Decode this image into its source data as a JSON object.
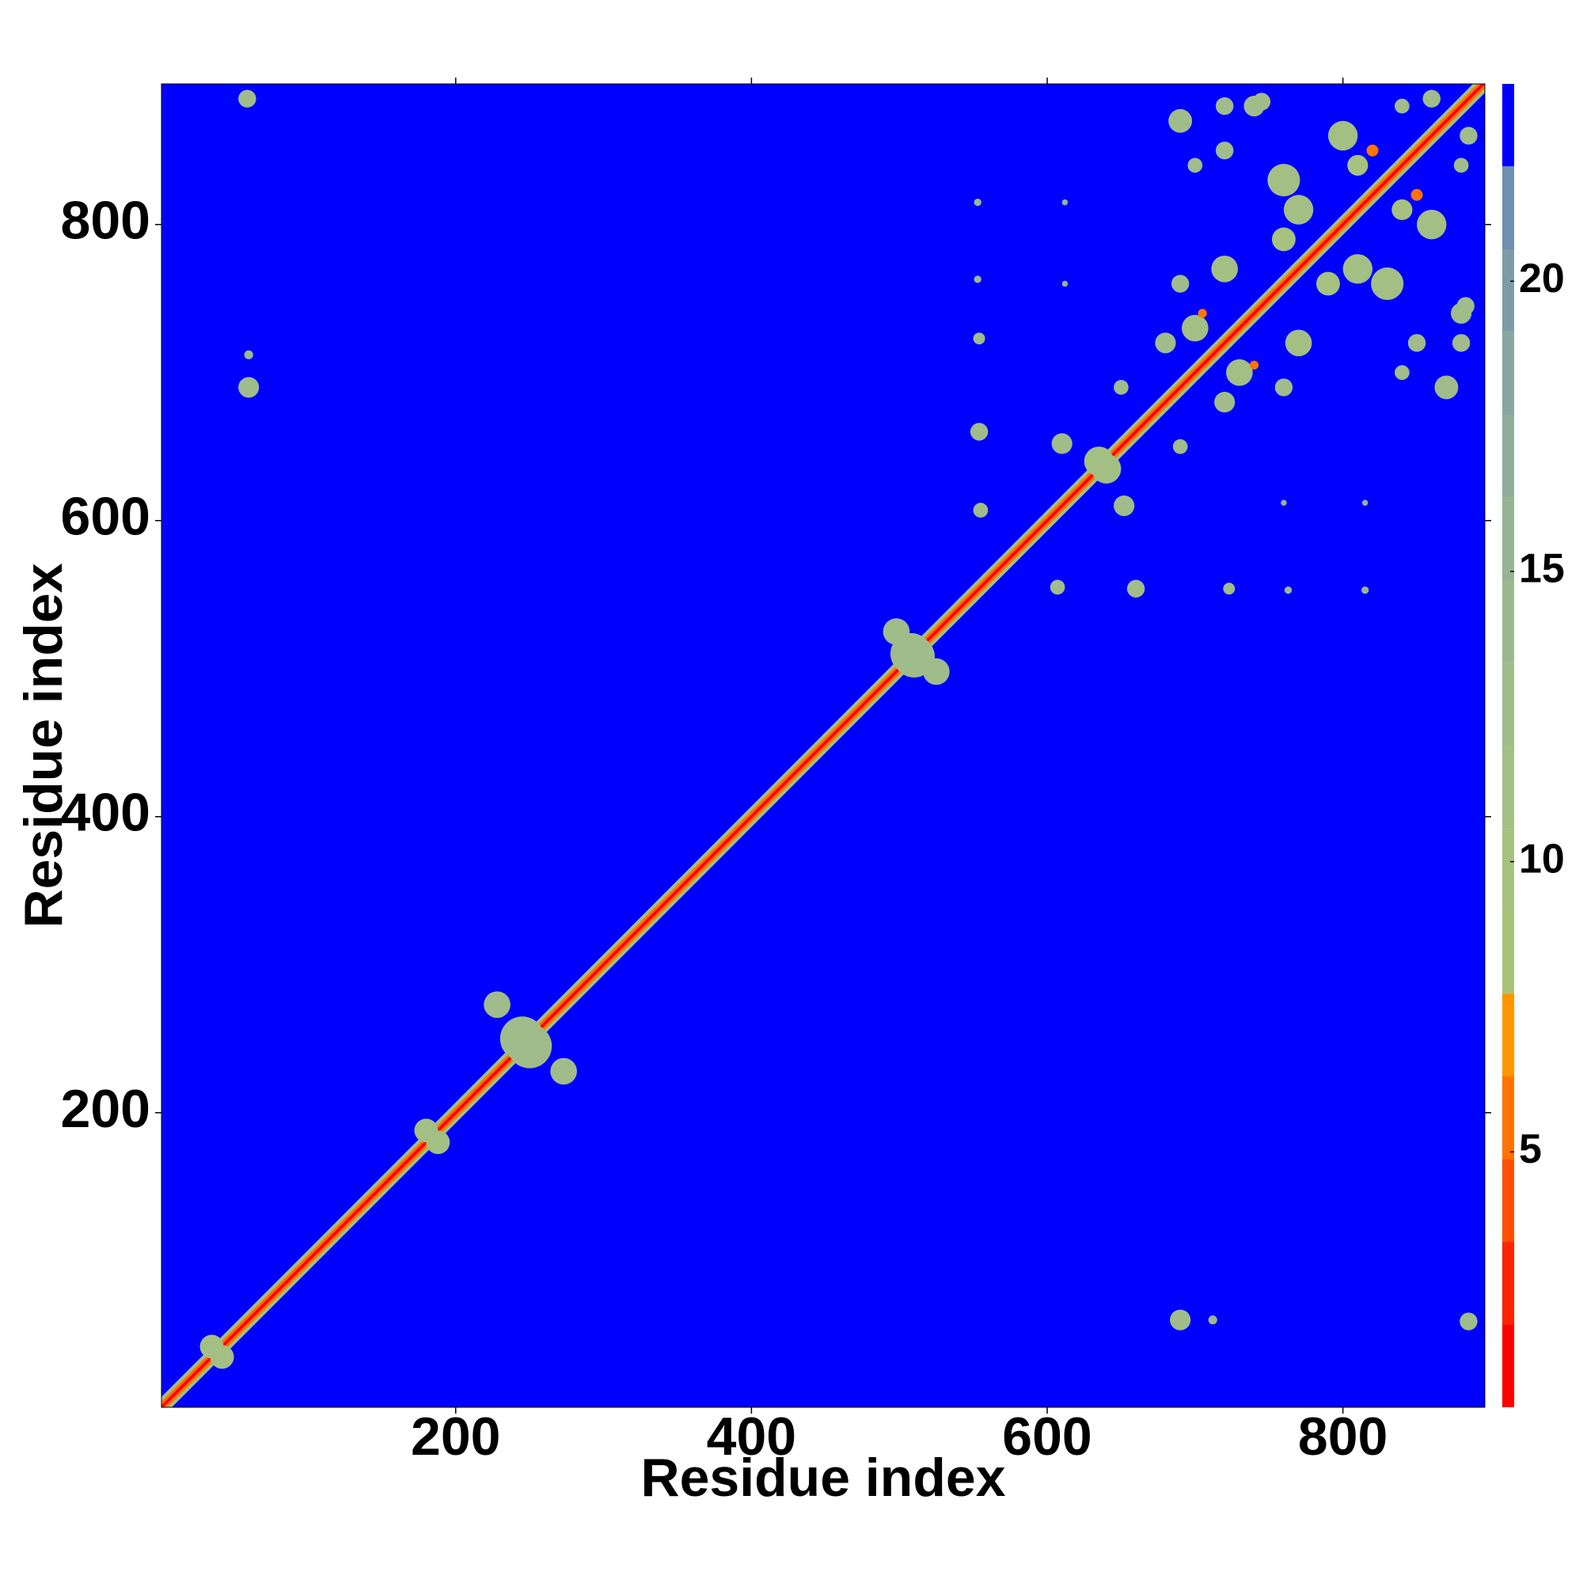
{
  "chart_data": {
    "type": "heatmap",
    "xlabel": "Residue index",
    "ylabel": "Residue index",
    "xlim": [
      1,
      896
    ],
    "ylim": [
      1,
      895
    ],
    "xticks": [
      200,
      400,
      600,
      800
    ],
    "yticks": [
      200,
      400,
      600,
      800
    ],
    "symmetric": true,
    "colorbar": {
      "zlim": [
        0.6,
        23.4
      ],
      "ticks": [
        5,
        10,
        15,
        20
      ],
      "levels": [
        0.6,
        2.03,
        3.45,
        4.88,
        6.3,
        7.73,
        9.15,
        10.58,
        12.0,
        13.43,
        14.85,
        16.28,
        17.7,
        19.13,
        20.55,
        21.98,
        23.4
      ],
      "colors": [
        "#ff0000",
        "#ff2400",
        "#ff5000",
        "#ff7400",
        "#ff9600",
        "#a8c47a",
        "#a6c27e",
        "#a3bf84",
        "#a0bc8a",
        "#9cb890",
        "#97b396",
        "#90ad9c",
        "#88a5a2",
        "#7e9ca8",
        "#6f8fb0",
        "#0000ff"
      ]
    },
    "diagonal": {
      "range": [
        1,
        895
      ],
      "offsets": [
        7,
        4,
        1.5
      ],
      "values": [
        11,
        5,
        1
      ]
    },
    "cells": {
      "x": [
        59,
        60,
        60,
        228,
        245,
        498,
        508,
        554,
        554,
        555,
        553,
        553,
        610,
        635,
        612,
        612,
        690,
        740,
        700,
        760,
        800,
        720,
        700,
        760,
        810,
        690,
        840,
        770,
        820,
        705,
        860,
        720,
        680,
        650,
        720,
        745,
        35,
        180
      ],
      "y": [
        885,
        690,
        712,
        273,
        250,
        525,
        510,
        723,
        660,
        607,
        815,
        763,
        652,
        640,
        815,
        760,
        870,
        880,
        840,
        830,
        860,
        770,
        730,
        790,
        840,
        760,
        880,
        810,
        850,
        740,
        885,
        850,
        720,
        690,
        880,
        883,
        42,
        188
      ],
      "size": [
        12,
        14,
        6,
        18,
        30,
        18,
        28,
        8,
        12,
        10,
        5,
        5,
        14,
        20,
        4,
        4,
        16,
        14,
        10,
        22,
        20,
        18,
        18,
        16,
        14,
        12,
        10,
        20,
        8,
        6,
        12,
        12,
        14,
        10,
        12,
        12,
        16,
        16
      ],
      "values": [
        12,
        12,
        14,
        12,
        12,
        12,
        12,
        12,
        12,
        12,
        14,
        14,
        12,
        11,
        15,
        15,
        12,
        12,
        13,
        11,
        11,
        11,
        11,
        10,
        10,
        12,
        12,
        11,
        6,
        6,
        12,
        13,
        12,
        12,
        12,
        12,
        11,
        11
      ]
    }
  }
}
